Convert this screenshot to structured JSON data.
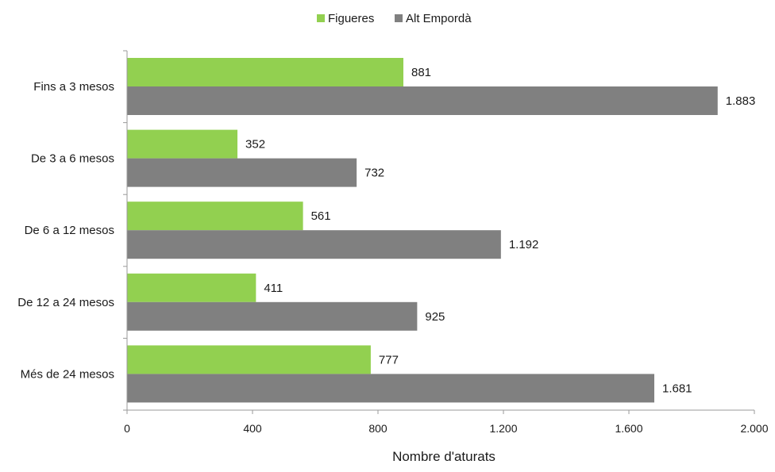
{
  "chart_data": {
    "type": "bar",
    "orientation": "horizontal",
    "title": "",
    "xlabel": "Nombre d'aturats",
    "ylabel": "",
    "xlim": [
      0,
      2000
    ],
    "xticks": [
      0,
      400,
      800,
      1200,
      1600,
      2000
    ],
    "xtick_labels": [
      "0",
      "400",
      "800",
      "1.200",
      "1.600",
      "2.000"
    ],
    "categories": [
      "Fins a 3 mesos",
      "De 3 a 6 mesos",
      "De 6 a 12 mesos",
      "De 12 a 24 mesos",
      "Més de 24 mesos"
    ],
    "series": [
      {
        "name": "Figueres",
        "color": "#92d050",
        "values": [
          881,
          352,
          561,
          411,
          777
        ],
        "value_labels": [
          "881",
          "352",
          "561",
          "411",
          "777"
        ]
      },
      {
        "name": "Alt Empordà",
        "color": "#808080",
        "values": [
          1883,
          732,
          1192,
          925,
          1681
        ],
        "value_labels": [
          "1.883",
          "732",
          "1.192",
          "925",
          "1.681"
        ]
      }
    ],
    "grid": false,
    "legend_position": "top-center"
  }
}
